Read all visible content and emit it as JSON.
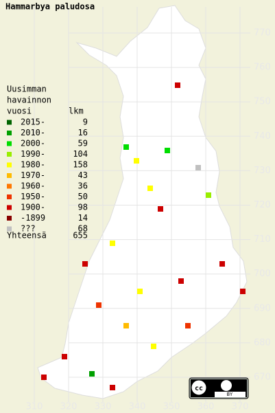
{
  "title": "Hammarbya paludosa",
  "legend": {
    "header": [
      "Uusimman",
      "havainnon",
      "vuosi"
    ],
    "count_header": "lkm",
    "items": [
      {
        "label": "2015-",
        "count": 9,
        "color": "#006400"
      },
      {
        "label": "2010-",
        "count": 16,
        "color": "#00a000"
      },
      {
        "label": "2000-",
        "count": 59,
        "color": "#00dd00"
      },
      {
        "label": "1990-",
        "count": 104,
        "color": "#99ee00"
      },
      {
        "label": "1980-",
        "count": 158,
        "color": "#ffff00"
      },
      {
        "label": "1970-",
        "count": 43,
        "color": "#ffbb00"
      },
      {
        "label": "1960-",
        "count": 36,
        "color": "#ff7700"
      },
      {
        "label": "1950-",
        "count": 50,
        "color": "#ee3300"
      },
      {
        "label": "1900-",
        "count": 98,
        "color": "#cc0000"
      },
      {
        "label": "-1899",
        "count": 14,
        "color": "#880000"
      },
      {
        "label": "???",
        "count": 68,
        "color": "#c0c0c0"
      }
    ],
    "total_label": "Yhteensä",
    "total": 655
  },
  "grid": {
    "north": [
      770,
      760,
      750,
      740,
      730,
      720,
      710,
      700,
      690,
      680,
      670
    ],
    "east": [
      310,
      320,
      330,
      340,
      350,
      360,
      370
    ]
  },
  "license": "BY"
}
